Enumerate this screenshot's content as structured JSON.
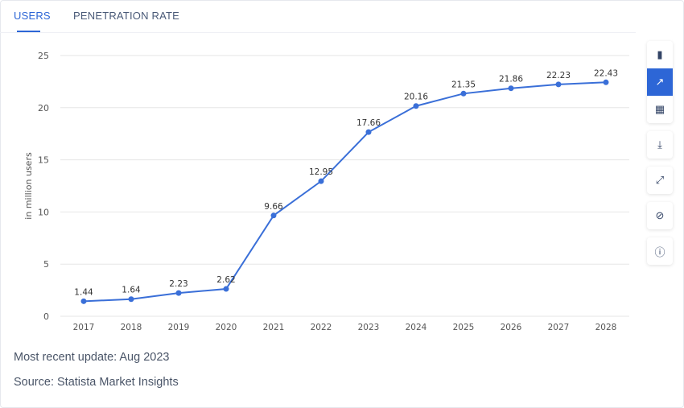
{
  "tabs": [
    {
      "label": "USERS",
      "active": true
    },
    {
      "label": "PENETRATION RATE",
      "active": false
    }
  ],
  "footer": {
    "update": "Most recent update: Aug 2023",
    "source": "Source: Statista Market Insights"
  },
  "toolbar": [
    "bar-chart-icon",
    "line-chart-icon",
    "table-icon",
    "download-icon",
    "expand-icon",
    "hide-icon",
    "info-icon"
  ],
  "colors": {
    "accent": "#2d66d6",
    "line": "#3a6fd8"
  },
  "chart_data": {
    "type": "line",
    "ylabel": "in million users",
    "ylim": [
      0,
      25
    ],
    "yticks": [
      "0",
      "5",
      "10",
      "15",
      "20",
      "25"
    ],
    "categories": [
      "2017",
      "2018",
      "2019",
      "2020",
      "2021",
      "2022",
      "2023",
      "2024",
      "2025",
      "2026",
      "2027",
      "2028"
    ],
    "values": [
      1.44,
      1.64,
      2.23,
      2.62,
      9.66,
      12.95,
      17.66,
      20.16,
      21.35,
      21.86,
      22.23,
      22.43
    ],
    "labels": [
      "1.44",
      "1.64",
      "2.23",
      "2.62",
      "9.66",
      "12.95",
      "17.66",
      "20.16",
      "21.35",
      "21.86",
      "22.23",
      "22.43"
    ],
    "grid": true
  }
}
